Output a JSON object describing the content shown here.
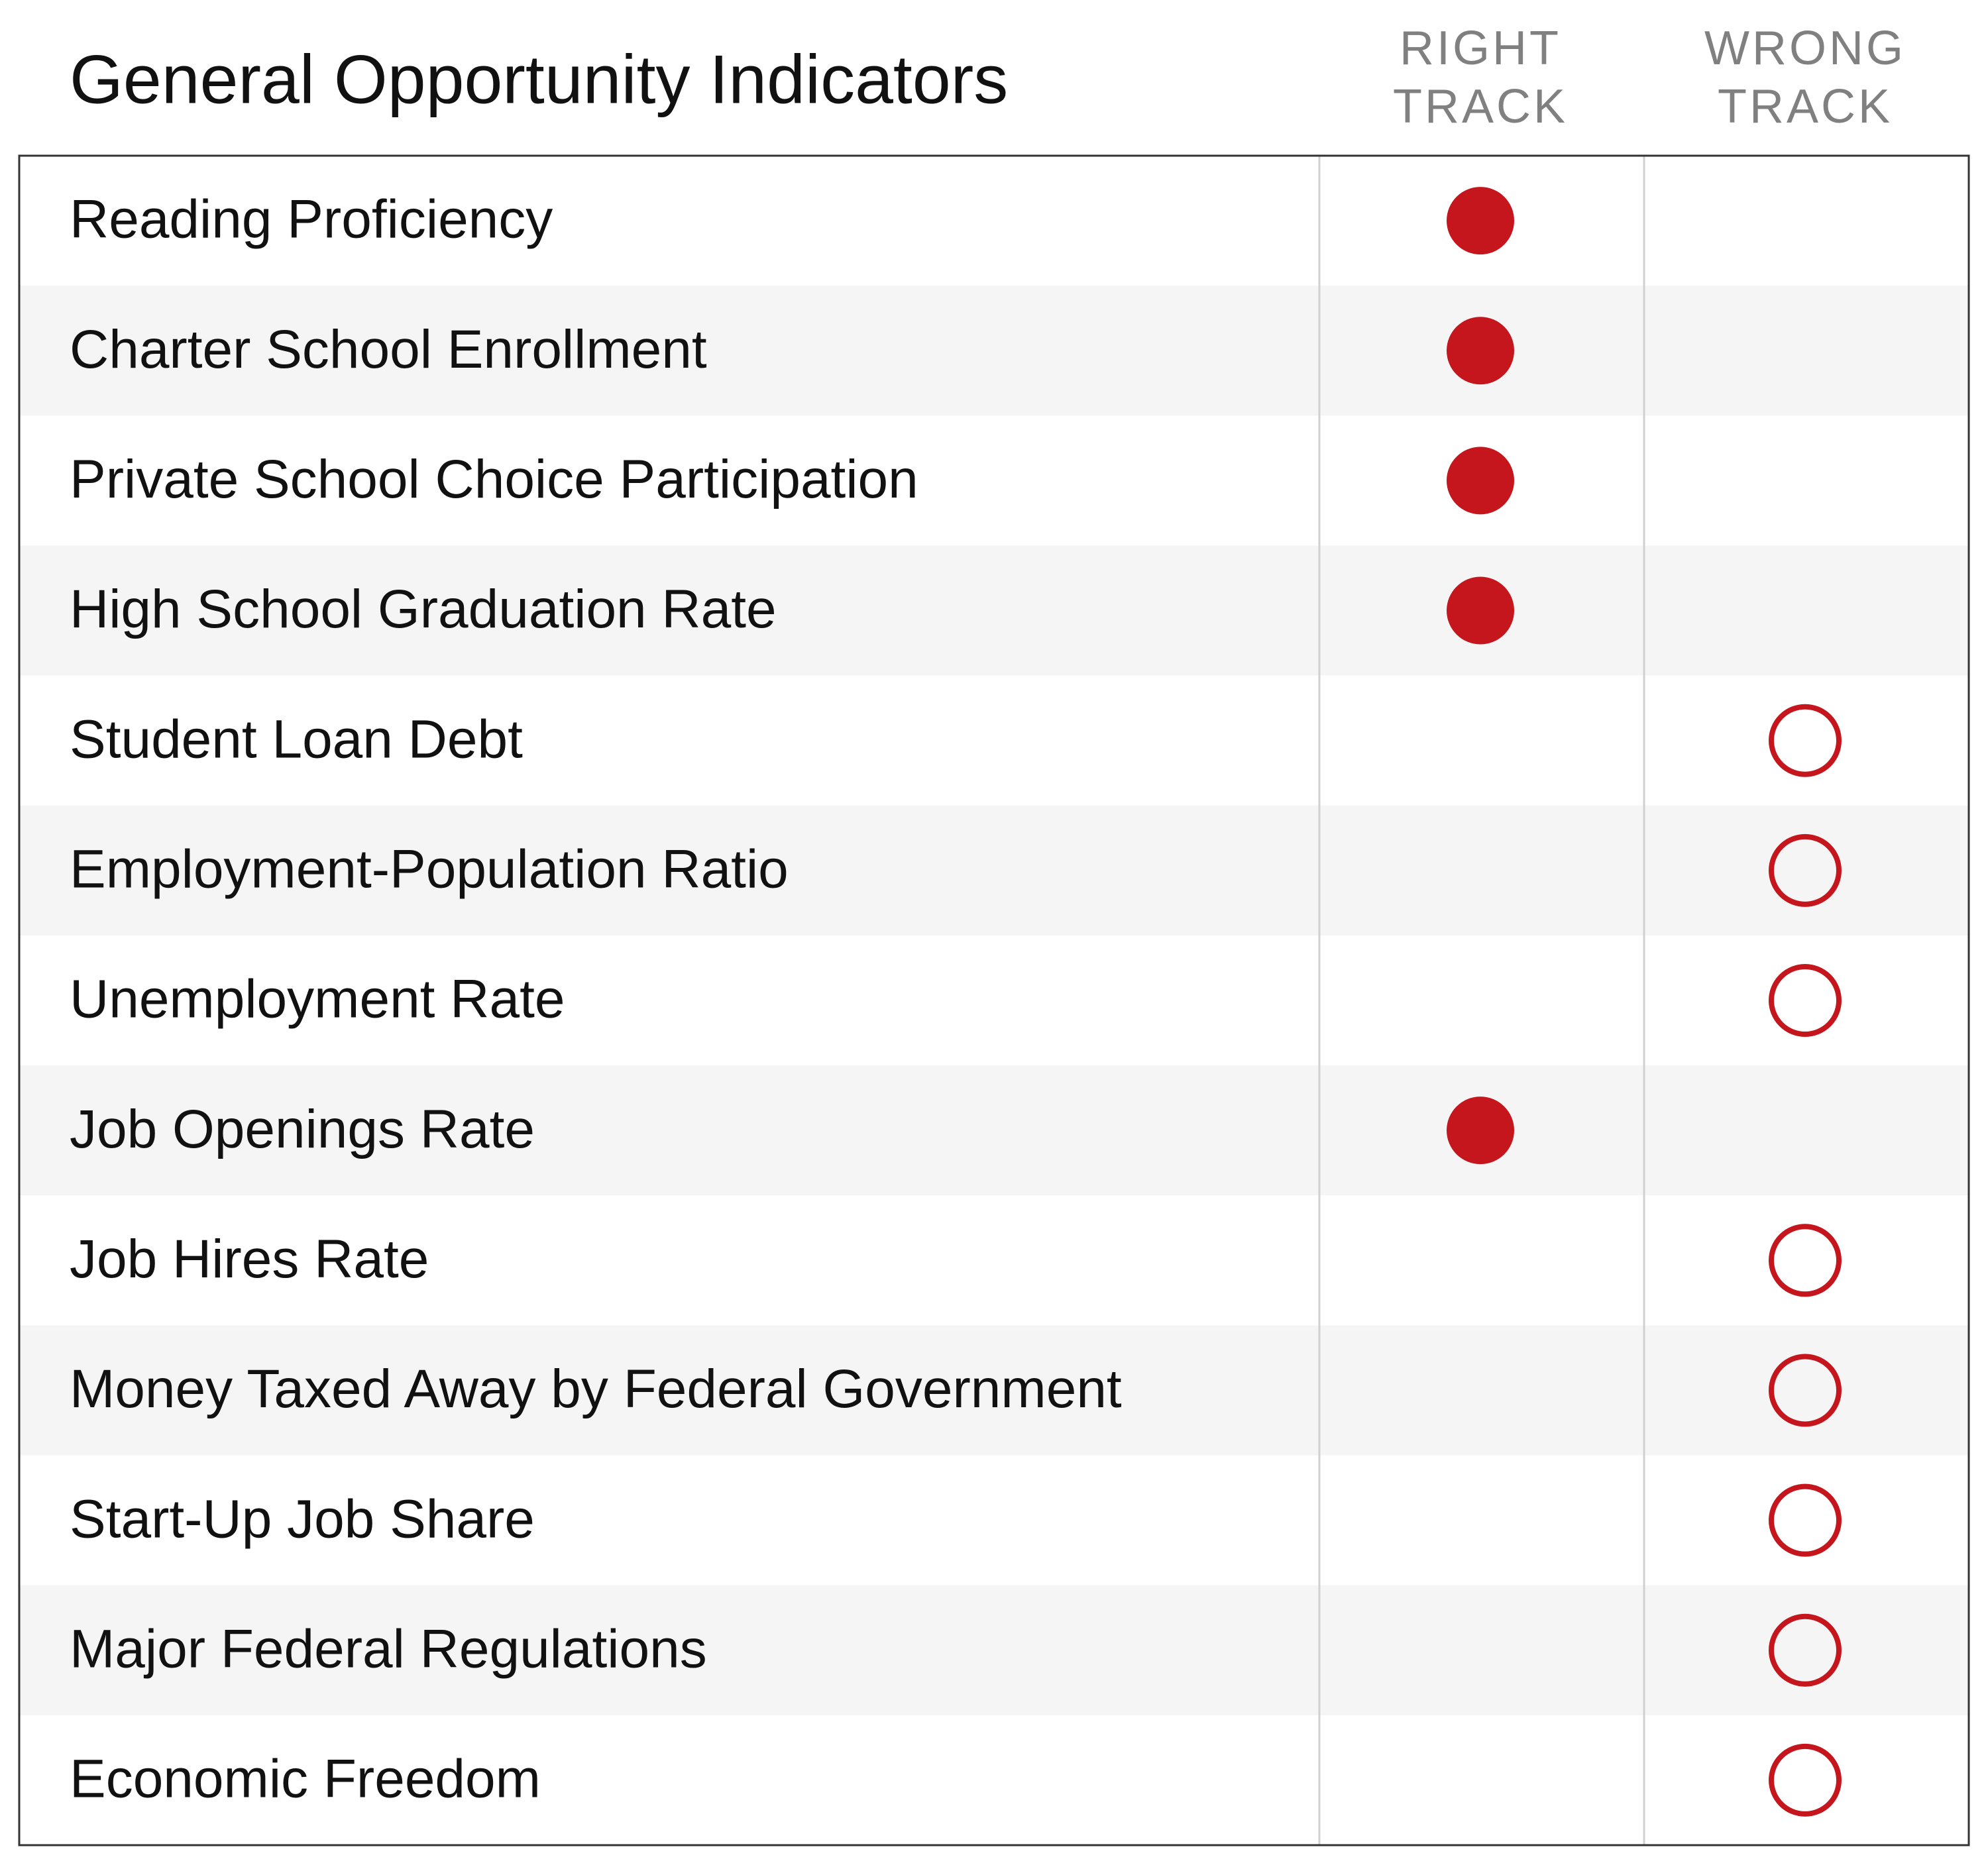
{
  "title": "General Opportunity Indicators",
  "columns": [
    "RIGHT TRACK",
    "WRONG TRACK"
  ],
  "rows": [
    {
      "label": "Reading Proficiency",
      "column": 0
    },
    {
      "label": "Charter School Enrollment",
      "column": 0
    },
    {
      "label": "Private School Choice Participation",
      "column": 0
    },
    {
      "label": "High School Graduation Rate",
      "column": 0
    },
    {
      "label": "Student Loan Debt",
      "column": 1
    },
    {
      "label": "Employment-Population Ratio",
      "column": 1
    },
    {
      "label": "Unemployment Rate",
      "column": 1
    },
    {
      "label": "Job Openings Rate",
      "column": 0
    },
    {
      "label": "Job Hires Rate",
      "column": 1
    },
    {
      "label": "Money Taxed Away by Federal Government",
      "column": 1
    },
    {
      "label": "Start-Up Job Share",
      "column": 1
    },
    {
      "label": "Major Federal Regulations",
      "column": 1
    },
    {
      "label": "Economic Freedom",
      "column": 1
    }
  ]
}
